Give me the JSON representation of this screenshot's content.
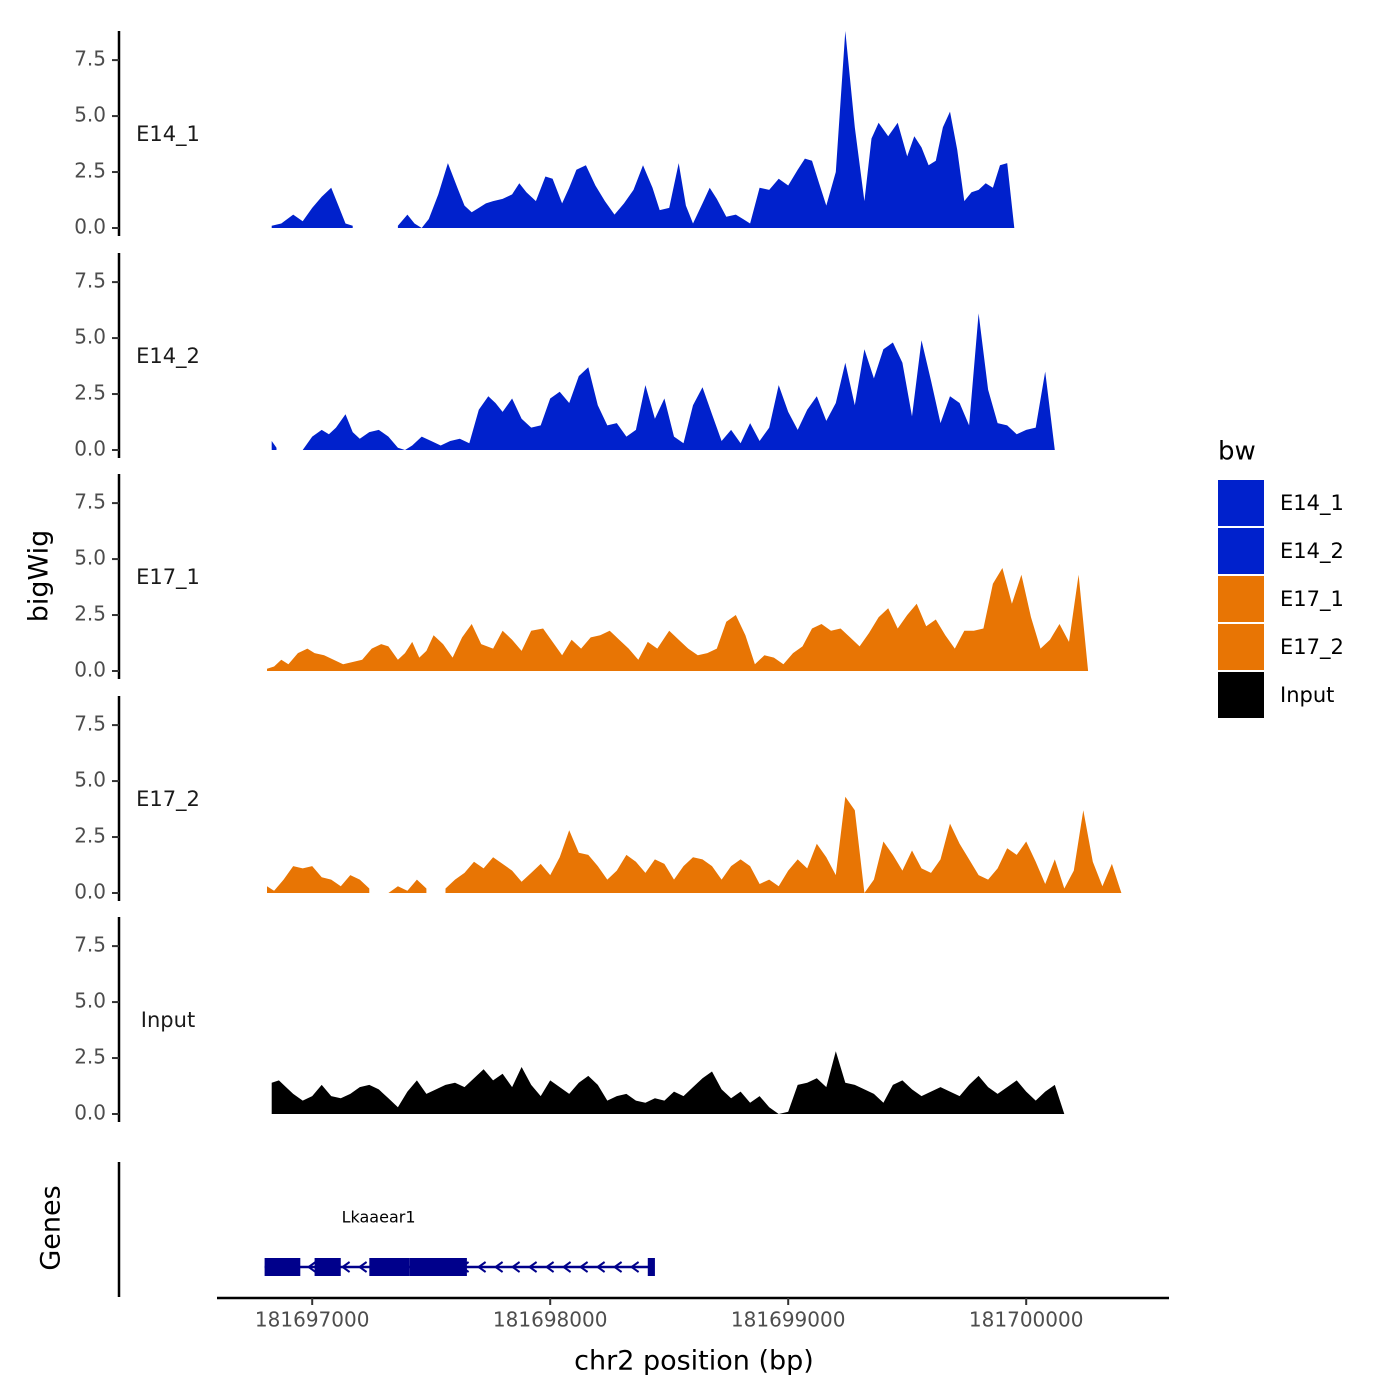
{
  "chart_data": {
    "type": "area",
    "xlabel": "chr2 position (bp)",
    "ylabel": "bigWig",
    "genes_label": "Genes",
    "xlim": [
      181696600,
      181700600
    ],
    "ylim": [
      0,
      8.8
    ],
    "x_ticks": [
      181697000,
      181698000,
      181699000,
      181700000
    ],
    "x_tick_labels": [
      "181697000",
      "181698000",
      "181699000",
      "181700000"
    ],
    "y_ticks": [
      0,
      2.5,
      5,
      7.5
    ],
    "y_tick_labels": [
      "0.0",
      "2.5",
      "5.0",
      "7.5"
    ],
    "legend": {
      "title": "bw",
      "items": [
        {
          "label": "E14_1",
          "color": "#0021CC"
        },
        {
          "label": "E14_2",
          "color": "#0021CC"
        },
        {
          "label": "E17_1",
          "color": "#E87504"
        },
        {
          "label": "E17_2",
          "color": "#E87504"
        },
        {
          "label": "Input",
          "color": "#000000"
        }
      ]
    },
    "series": [
      {
        "name": "E14_1",
        "label": "E14_1",
        "color": "#0021CC",
        "x": [
          181696830,
          181696870,
          181696920,
          181696960,
          181697000,
          181697040,
          181697080,
          181697110,
          181697140,
          181697170,
          181697200,
          181697240,
          181697270,
          181697300,
          181697330,
          181697360,
          181697400,
          181697430,
          181697460,
          181697490,
          181697530,
          181697570,
          181697610,
          181697640,
          181697670,
          181697700,
          181697730,
          181697760,
          181697800,
          181697840,
          181697870,
          181697900,
          181697940,
          181697980,
          181698010,
          181698050,
          181698080,
          181698110,
          181698150,
          181698190,
          181698230,
          181698270,
          181698310,
          181698350,
          181698390,
          181698430,
          181698460,
          181698500,
          181698540,
          181698570,
          181698600,
          181698640,
          181698670,
          181698700,
          181698740,
          181698780,
          181698810,
          181698840,
          181698880,
          181698920,
          181698960,
          181699000,
          181699040,
          181699070,
          181699100,
          181699130,
          181699160,
          181699200,
          181699240,
          181699280,
          181699320,
          181699350,
          181699380,
          181699420,
          181699460,
          181699500,
          181699530,
          181699560,
          181699590,
          181699620,
          181699650,
          181699680,
          181699710,
          181699740,
          181699770,
          181699800,
          181699830,
          181699860,
          181699890,
          181699920,
          181699950,
          181699980,
          181700010,
          181700050,
          181700090,
          181700130,
          181700170,
          181700210,
          181700250,
          181700290,
          181700330,
          181700360,
          181700400,
          181700430,
          181700440
        ],
        "y": [
          0.1,
          0.2,
          0.6,
          0.3,
          0.9,
          1.4,
          1.8,
          1.0,
          0.2,
          0.1,
          null,
          null,
          null,
          null,
          null,
          0.1,
          0.6,
          0.2,
          0.0,
          0.4,
          1.5,
          2.9,
          1.8,
          1.0,
          0.7,
          0.9,
          1.1,
          1.2,
          1.3,
          1.5,
          2.0,
          1.6,
          1.2,
          2.3,
          2.2,
          1.1,
          1.8,
          2.6,
          2.8,
          1.9,
          1.2,
          0.6,
          1.1,
          1.7,
          2.8,
          1.8,
          0.8,
          0.9,
          2.9,
          1.0,
          0.2,
          1.1,
          1.8,
          1.3,
          0.5,
          0.6,
          0.4,
          0.2,
          1.8,
          1.7,
          2.2,
          1.9,
          2.6,
          3.1,
          3.0,
          2.0,
          1.0,
          2.5,
          8.8,
          4.5,
          1.2,
          4.0,
          4.7,
          4.1,
          4.7,
          3.2,
          4.1,
          3.6,
          2.8,
          3.0,
          4.5,
          5.2,
          3.5,
          1.2,
          1.6,
          1.7,
          2.0,
          1.8,
          2.8,
          2.9,
          0.0,
          null,
          null,
          null,
          null,
          null,
          null,
          null,
          null,
          null,
          null,
          null,
          null,
          null,
          null
        ]
      },
      {
        "name": "E14_2",
        "label": "E14_2",
        "color": "#0021CC",
        "x": [
          181696830,
          181696850,
          181696880,
          181696920,
          181696960,
          181697000,
          181697040,
          181697070,
          181697100,
          181697140,
          181697170,
          181697200,
          181697240,
          181697280,
          181697320,
          181697360,
          181697390,
          181697420,
          181697460,
          181697500,
          181697540,
          181697580,
          181697620,
          181697660,
          181697700,
          181697740,
          181697770,
          181697800,
          181697840,
          181697880,
          181697920,
          181697960,
          181698000,
          181698040,
          181698080,
          181698120,
          181698160,
          181698200,
          181698240,
          181698280,
          181698320,
          181698360,
          181698400,
          181698440,
          181698480,
          181698520,
          181698560,
          181698600,
          181698640,
          181698680,
          181698720,
          181698760,
          181698800,
          181698840,
          181698880,
          181698920,
          181698960,
          181699000,
          181699040,
          181699080,
          181699120,
          181699160,
          181699200,
          181699240,
          181699280,
          181699320,
          181699360,
          181699400,
          181699440,
          181699480,
          181699520,
          181699560,
          181699600,
          181699640,
          181699680,
          181699720,
          181699760,
          181699800,
          181699840,
          181699880,
          181699920,
          181699960,
          181700000,
          181700040,
          181700080,
          181700120,
          181700160,
          181700200,
          181700240,
          181700280,
          181700320,
          181700360,
          181700400,
          181700430
        ],
        "y": [
          0.4,
          0.1,
          null,
          null,
          0.0,
          0.6,
          0.9,
          0.7,
          1.0,
          1.6,
          0.8,
          0.5,
          0.8,
          0.9,
          0.6,
          0.1,
          0.0,
          0.2,
          0.6,
          0.4,
          0.2,
          0.4,
          0.5,
          0.3,
          1.8,
          2.4,
          2.1,
          1.7,
          2.3,
          1.4,
          1.0,
          1.1,
          2.3,
          2.6,
          2.1,
          3.3,
          3.7,
          2.0,
          1.1,
          1.2,
          0.6,
          0.9,
          2.9,
          1.4,
          2.3,
          0.6,
          0.3,
          2.0,
          2.8,
          1.6,
          0.4,
          0.9,
          0.3,
          1.2,
          0.4,
          1.0,
          2.9,
          1.7,
          0.9,
          1.8,
          2.4,
          1.3,
          2.1,
          3.9,
          2.0,
          4.5,
          3.2,
          4.5,
          4.8,
          3.9,
          1.5,
          4.9,
          3.1,
          1.2,
          2.4,
          2.1,
          1.1,
          6.1,
          2.7,
          1.2,
          1.1,
          0.7,
          0.9,
          1.0,
          3.5,
          0.0,
          null,
          null,
          null,
          null,
          null,
          null,
          null,
          null
        ]
      },
      {
        "name": "E17_1",
        "label": "E17_1",
        "color": "#E87504",
        "x": [
          181696810,
          181696840,
          181696870,
          181696900,
          181696940,
          181696980,
          181697010,
          181697050,
          181697090,
          181697130,
          181697170,
          181697210,
          181697250,
          181697290,
          181697320,
          181697360,
          181697390,
          181697420,
          181697450,
          181697480,
          181697510,
          181697550,
          181697590,
          181697630,
          181697670,
          181697710,
          181697760,
          181697800,
          181697840,
          181697880,
          181697920,
          181697970,
          181698010,
          181698050,
          181698090,
          181698130,
          181698170,
          181698210,
          181698250,
          181698290,
          181698330,
          181698370,
          181698410,
          181698450,
          181698500,
          181698540,
          181698580,
          181698620,
          181698660,
          181698700,
          181698740,
          181698780,
          181698820,
          181698860,
          181698900,
          181698940,
          181698980,
          181699020,
          181699060,
          181699100,
          181699140,
          181699180,
          181699220,
          181699260,
          181699300,
          181699340,
          181699380,
          181699420,
          181699460,
          181699500,
          181699540,
          181699580,
          181699620,
          181699660,
          181699700,
          181699740,
          181699780,
          181699820,
          181699860,
          181699900,
          181699940,
          181699980,
          181700020,
          181700060,
          181700100,
          181700140,
          181700180,
          181700220,
          181700260,
          181700300,
          181700340,
          181700380,
          181700420,
          181700440
        ],
        "y": [
          0.1,
          0.2,
          0.5,
          0.3,
          0.8,
          1.0,
          0.8,
          0.7,
          0.5,
          0.3,
          0.4,
          0.5,
          1.0,
          1.2,
          1.1,
          0.5,
          0.8,
          1.3,
          0.6,
          0.9,
          1.6,
          1.2,
          0.6,
          1.5,
          2.1,
          1.2,
          1.0,
          1.8,
          1.4,
          0.9,
          1.8,
          1.9,
          1.3,
          0.7,
          1.4,
          1.0,
          1.5,
          1.6,
          1.8,
          1.4,
          1.0,
          0.5,
          1.3,
          1.0,
          1.8,
          1.4,
          1.0,
          0.7,
          0.8,
          1.0,
          2.2,
          2.5,
          1.6,
          0.3,
          0.7,
          0.6,
          0.3,
          0.8,
          1.1,
          1.9,
          2.1,
          1.8,
          1.9,
          1.5,
          1.1,
          1.7,
          2.4,
          2.8,
          1.9,
          2.5,
          3.0,
          2.0,
          2.3,
          1.6,
          1.0,
          1.8,
          1.8,
          1.9,
          3.9,
          4.6,
          3.0,
          4.3,
          2.4,
          1.0,
          1.4,
          2.1,
          1.3,
          4.3,
          0.0,
          null,
          null,
          null,
          null,
          null
        ]
      },
      {
        "name": "E17_2",
        "label": "E17_2",
        "color": "#E87504",
        "x": [
          181696810,
          181696840,
          181696880,
          181696920,
          181696960,
          181697000,
          181697040,
          181697080,
          181697120,
          181697160,
          181697200,
          181697240,
          181697280,
          181697320,
          181697360,
          181697400,
          181697440,
          181697480,
          181697520,
          181697560,
          181697600,
          181697640,
          181697680,
          181697720,
          181697760,
          181697800,
          181697840,
          181697880,
          181697920,
          181697960,
          181698000,
          181698040,
          181698080,
          181698120,
          181698160,
          181698200,
          181698240,
          181698280,
          181698320,
          181698360,
          181698400,
          181698440,
          181698480,
          181698520,
          181698560,
          181698600,
          181698640,
          181698680,
          181698720,
          181698760,
          181698800,
          181698840,
          181698880,
          181698920,
          181698960,
          181699000,
          181699040,
          181699080,
          181699120,
          181699160,
          181699200,
          181699240,
          181699280,
          181699320,
          181699360,
          181699400,
          181699440,
          181699480,
          181699520,
          181699560,
          181699600,
          181699640,
          181699680,
          181699720,
          181699760,
          181699800,
          181699840,
          181699880,
          181699920,
          181699960,
          181700000,
          181700040,
          181700080,
          181700120,
          181700160,
          181700200,
          181700240,
          181700280,
          181700320,
          181700360,
          181700400,
          181700440,
          181700450
        ],
        "y": [
          0.3,
          0.1,
          0.6,
          1.2,
          1.1,
          1.2,
          0.7,
          0.6,
          0.3,
          0.8,
          0.6,
          0.2,
          null,
          0.0,
          0.3,
          0.1,
          0.6,
          0.2,
          null,
          0.2,
          0.6,
          0.9,
          1.4,
          1.1,
          1.6,
          1.3,
          1.0,
          0.5,
          0.9,
          1.3,
          0.8,
          1.6,
          2.8,
          1.8,
          1.7,
          1.2,
          0.6,
          1.0,
          1.7,
          1.4,
          0.9,
          1.5,
          1.3,
          0.6,
          1.2,
          1.6,
          1.5,
          1.2,
          0.6,
          1.2,
          1.5,
          1.2,
          0.4,
          0.6,
          0.3,
          1.0,
          1.5,
          1.1,
          2.2,
          1.6,
          0.8,
          4.3,
          3.7,
          0.0,
          0.6,
          2.3,
          1.7,
          1.0,
          1.9,
          1.1,
          0.9,
          1.5,
          3.1,
          2.2,
          1.5,
          0.8,
          0.6,
          1.1,
          2.0,
          1.7,
          2.3,
          1.4,
          0.4,
          1.5,
          0.2,
          1.0,
          3.7,
          1.4,
          0.3,
          1.3,
          0.0,
          null,
          null
        ]
      },
      {
        "name": "Input",
        "label": "Input",
        "color": "#000000",
        "x": [
          181696830,
          181696860,
          181696890,
          181696920,
          181696960,
          181697000,
          181697040,
          181697080,
          181697120,
          181697160,
          181697200,
          181697240,
          181697280,
          181697320,
          181697360,
          181697400,
          181697440,
          181697480,
          181697520,
          181697560,
          181697600,
          181697640,
          181697680,
          181697720,
          181697760,
          181697800,
          181697840,
          181697880,
          181697920,
          181697960,
          181698000,
          181698040,
          181698080,
          181698120,
          181698160,
          181698200,
          181698240,
          181698280,
          181698320,
          181698360,
          181698400,
          181698440,
          181698480,
          181698520,
          181698560,
          181698600,
          181698640,
          181698680,
          181698720,
          181698760,
          181698800,
          181698840,
          181698880,
          181698920,
          181698960,
          181699000,
          181699040,
          181699080,
          181699120,
          181699160,
          181699200,
          181699240,
          181699280,
          181699320,
          181699360,
          181699400,
          181699440,
          181699480,
          181699520,
          181699560,
          181699600,
          181699640,
          181699680,
          181699720,
          181699760,
          181699800,
          181699840,
          181699880,
          181699920,
          181699960,
          181700000,
          181700040,
          181700080,
          181700120,
          181700160,
          181700200,
          181700240,
          181700280,
          181700320,
          181700360,
          181700400,
          181700430
        ],
        "y": [
          1.4,
          1.5,
          1.2,
          0.9,
          0.6,
          0.8,
          1.3,
          0.8,
          0.7,
          0.9,
          1.2,
          1.3,
          1.1,
          0.7,
          0.3,
          1.0,
          1.5,
          0.9,
          1.1,
          1.3,
          1.4,
          1.2,
          1.6,
          2.0,
          1.5,
          1.8,
          1.2,
          2.1,
          1.3,
          0.8,
          1.5,
          1.2,
          0.9,
          1.4,
          1.7,
          1.3,
          0.6,
          0.8,
          0.9,
          0.6,
          0.5,
          0.7,
          0.6,
          1.0,
          0.8,
          1.2,
          1.6,
          1.9,
          1.1,
          0.7,
          1.0,
          0.5,
          0.8,
          0.3,
          0.0,
          0.1,
          1.3,
          1.4,
          1.6,
          1.2,
          2.8,
          1.4,
          1.3,
          1.1,
          0.9,
          0.5,
          1.3,
          1.5,
          1.1,
          0.8,
          1.0,
          1.2,
          1.0,
          0.8,
          1.3,
          1.7,
          1.2,
          0.9,
          1.2,
          1.5,
          1.0,
          0.6,
          1.0,
          1.3,
          0.0,
          null,
          null,
          null,
          null,
          null,
          null,
          null
        ]
      }
    ],
    "genes": [
      {
        "name": "Lkaaear1",
        "strand": "-",
        "start": 181696800,
        "end": 181698430,
        "exons": [
          [
            181696800,
            181696950
          ],
          [
            181697010,
            181697120
          ],
          [
            181697240,
            181697410
          ],
          [
            181697410,
            181697650
          ],
          [
            181698410,
            181698440
          ]
        ],
        "color": "#00008B"
      }
    ]
  }
}
